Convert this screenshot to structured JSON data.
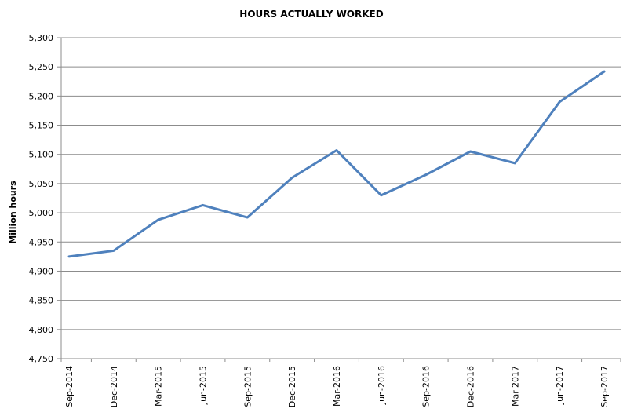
{
  "chart_data": {
    "type": "line",
    "title": "HOURS ACTUALLY WORKED",
    "xlabel": "",
    "ylabel": "Million hours",
    "categories": [
      "Sep-2014",
      "Dec-2014",
      "Mar-2015",
      "Jun-2015",
      "Sep-2015",
      "Dec-2015",
      "Mar-2016",
      "Jun-2016",
      "Sep-2016",
      "Dec-2016",
      "Mar-2017",
      "Jun-2017",
      "Sep-2017"
    ],
    "values": [
      4925,
      4935,
      4988,
      5013,
      4992,
      5060,
      5107,
      5030,
      5065,
      5105,
      5085,
      5190,
      5242
    ],
    "ylim": [
      4750,
      5300
    ],
    "ytick_step": 50,
    "ytick_labels": [
      "4,750",
      "4,800",
      "4,850",
      "4,900",
      "4,950",
      "5,000",
      "5,050",
      "5,100",
      "5,150",
      "5,200",
      "5,250",
      "5,300"
    ],
    "grid": true,
    "legend_position": "none",
    "colors": {
      "line": "#4F81BD",
      "gridline": "#8C8C8C",
      "axis": "#8C8C8C",
      "text": "#000000",
      "background": "#FFFFFF"
    }
  }
}
